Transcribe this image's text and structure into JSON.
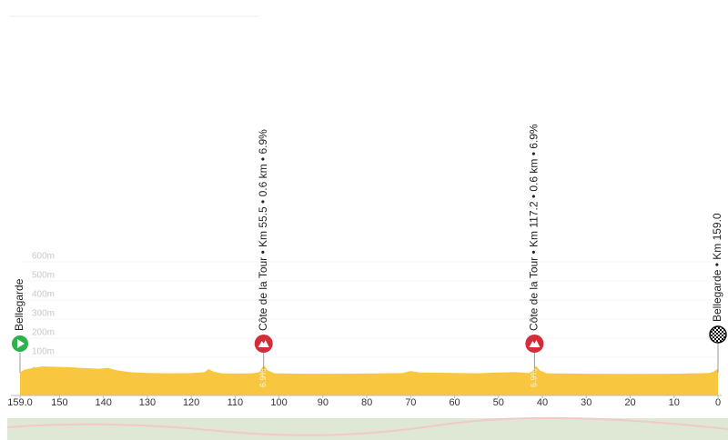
{
  "chart_data": {
    "type": "area",
    "color": "#f8c63f",
    "x": [
      159,
      158,
      156,
      154,
      151,
      148,
      145,
      141,
      139,
      137,
      134,
      130,
      125,
      120,
      117,
      116,
      115,
      113,
      110,
      106,
      104.5,
      103.5,
      102.5,
      101,
      95,
      90,
      80,
      72,
      70,
      68,
      60,
      55,
      50,
      46,
      43,
      42,
      41.5,
      40.5,
      39,
      35,
      30,
      20,
      10,
      5,
      2,
      1,
      0
    ],
    "values": [
      20,
      35,
      45,
      52,
      50,
      48,
      44,
      40,
      45,
      32,
      22,
      18,
      16,
      17,
      22,
      38,
      25,
      16,
      15,
      16,
      22,
      58,
      30,
      16,
      14,
      14,
      15,
      17,
      28,
      20,
      18,
      16,
      20,
      22,
      17,
      35,
      55,
      30,
      16,
      15,
      14,
      13,
      14,
      16,
      18,
      25,
      40
    ],
    "xlim": [
      159,
      0
    ],
    "xticks": [
      {
        "value": 159,
        "label": "159.0"
      },
      150,
      140,
      130,
      120,
      110,
      100,
      90,
      80,
      70,
      60,
      50,
      40,
      30,
      20,
      10,
      0
    ],
    "ylim": [
      -100,
      700
    ],
    "yticks": [
      {
        "value": 0,
        "label": "0m"
      },
      {
        "value": 100,
        "label": "100m"
      },
      {
        "value": 200,
        "label": "200m"
      },
      {
        "value": 300,
        "label": "300m"
      },
      {
        "value": 400,
        "label": "400m"
      },
      {
        "value": 500,
        "label": "500m"
      },
      {
        "value": 600,
        "label": "600m"
      }
    ],
    "annotations": [
      {
        "text": "Bellegarde",
        "x": 159,
        "marker": "start"
      },
      {
        "text": "Côte de la Tour • Km 55.5 • 0.6 km • 6.9%",
        "x": 103.5,
        "marker": "climb",
        "gradient_label": "6.9%"
      },
      {
        "text": "Côte de la Tour • Km 117.2 • 0.6 km • 6.9%",
        "x": 41.8,
        "marker": "climb",
        "gradient_label": "6.9%"
      },
      {
        "text": "Bellegarde • Km 159.0",
        "x": 0,
        "marker": "finish"
      }
    ]
  }
}
